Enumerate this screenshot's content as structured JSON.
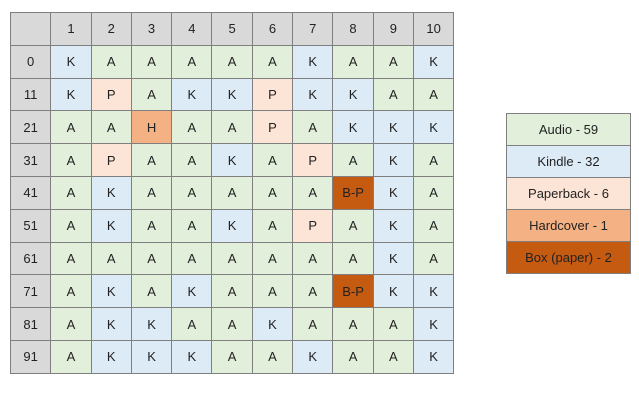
{
  "chart_data": {
    "type": "table",
    "column_headers": [
      "1",
      "2",
      "3",
      "4",
      "5",
      "6",
      "7",
      "8",
      "9",
      "10"
    ],
    "row_headers": [
      "0",
      "11",
      "21",
      "31",
      "41",
      "51",
      "61",
      "71",
      "81",
      "91"
    ],
    "rows": [
      [
        "K",
        "A",
        "A",
        "A",
        "A",
        "A",
        "K",
        "A",
        "A",
        "K"
      ],
      [
        "K",
        "P",
        "A",
        "K",
        "K",
        "P",
        "K",
        "K",
        "A",
        "A"
      ],
      [
        "A",
        "A",
        "H",
        "A",
        "A",
        "P",
        "A",
        "K",
        "K",
        "K"
      ],
      [
        "A",
        "P",
        "A",
        "A",
        "K",
        "A",
        "P",
        "A",
        "K",
        "A"
      ],
      [
        "A",
        "K",
        "A",
        "A",
        "A",
        "A",
        "A",
        "B-P",
        "K",
        "A"
      ],
      [
        "A",
        "K",
        "A",
        "A",
        "K",
        "A",
        "P",
        "A",
        "K",
        "A"
      ],
      [
        "A",
        "A",
        "A",
        "A",
        "A",
        "A",
        "A",
        "A",
        "K",
        "A"
      ],
      [
        "A",
        "K",
        "A",
        "K",
        "A",
        "A",
        "A",
        "B-P",
        "K",
        "K"
      ],
      [
        "A",
        "K",
        "K",
        "A",
        "A",
        "K",
        "A",
        "A",
        "A",
        "K"
      ],
      [
        "A",
        "K",
        "K",
        "K",
        "A",
        "A",
        "K",
        "A",
        "A",
        "K"
      ]
    ],
    "category_colors": {
      "A": "#e2efda",
      "K": "#ddebf7",
      "P": "#fce4d6",
      "H": "#f4b183",
      "B-P": "#c55a11"
    },
    "header_color": "#d9d9d9",
    "legend": [
      {
        "code": "A",
        "label": "Audio - 59",
        "color": "#e2efda"
      },
      {
        "code": "K",
        "label": "Kindle - 32",
        "color": "#ddebf7"
      },
      {
        "code": "P",
        "label": "Paperback - 6",
        "color": "#fce4d6"
      },
      {
        "code": "H",
        "label": "Hardcover - 1",
        "color": "#f4b183"
      },
      {
        "code": "B-P",
        "label": "Box (paper) - 2",
        "color": "#c55a11"
      }
    ]
  }
}
